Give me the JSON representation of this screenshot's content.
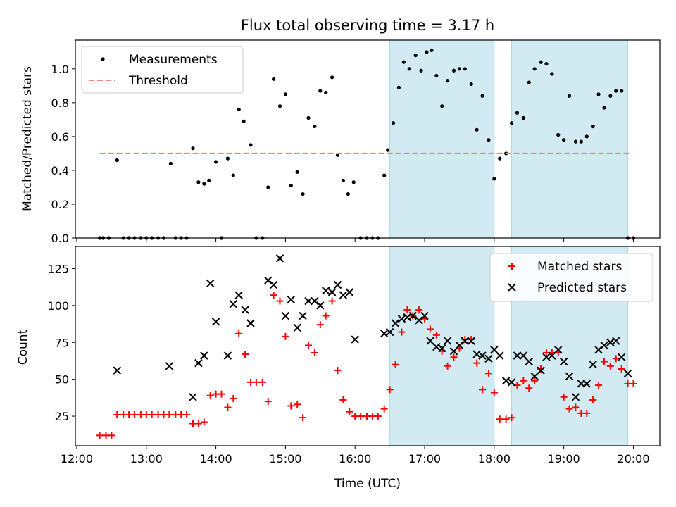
{
  "title": "Flux total observing time = 3.17 h",
  "shared_x": {
    "label": "Time (UTC)",
    "ticks": [
      "12:00",
      "13:00",
      "14:00",
      "15:00",
      "16:00",
      "17:00",
      "18:00",
      "19:00",
      "20:00"
    ],
    "range_hours": [
      11.98,
      20.38
    ],
    "shaded_intervals_hours": [
      [
        16.5,
        18.0
      ],
      [
        18.25,
        19.92
      ]
    ],
    "shade_color": "#add8e6"
  },
  "chart_data": [
    {
      "type": "scatter",
      "ylabel": "Matched/Predicted stars",
      "ylim": [
        0,
        1.17
      ],
      "yticks": [
        "0.0",
        "0.2",
        "0.4",
        "0.6",
        "0.8",
        "1.0"
      ],
      "legend_position": "top-left",
      "series": [
        {
          "name": "Measurements",
          "marker": "dot",
          "color": "#000000",
          "x": [
            12.33,
            12.38,
            12.46,
            12.58,
            12.67,
            12.75,
            12.83,
            12.92,
            13.0,
            13.08,
            13.17,
            13.25,
            13.35,
            13.42,
            13.5,
            13.58,
            13.67,
            13.75,
            13.83,
            13.9,
            14.0,
            14.08,
            14.17,
            14.25,
            14.33,
            14.4,
            14.5,
            14.58,
            14.67,
            14.75,
            14.83,
            14.92,
            15.0,
            15.08,
            15.17,
            15.25,
            15.33,
            15.42,
            15.5,
            15.58,
            15.67,
            15.75,
            15.83,
            15.9,
            15.98,
            16.08,
            16.17,
            16.25,
            16.33,
            16.42,
            16.47,
            16.55,
            16.63,
            16.7,
            16.78,
            16.87,
            16.95,
            17.03,
            17.1,
            17.17,
            17.25,
            17.33,
            17.42,
            17.5,
            17.58,
            17.67,
            17.75,
            17.83,
            17.92,
            18.0,
            18.08,
            18.17,
            18.25,
            18.33,
            18.42,
            18.5,
            18.58,
            18.67,
            18.75,
            18.83,
            18.92,
            19.0,
            19.08,
            19.17,
            19.25,
            19.33,
            19.42,
            19.5,
            19.58,
            19.67,
            19.75,
            19.83,
            19.92,
            20.0
          ],
          "y": [
            0.0,
            0.0,
            0.0,
            0.46,
            0.0,
            0.0,
            0.0,
            0.0,
            0.0,
            0.0,
            0.0,
            0.0,
            0.44,
            0.0,
            0.0,
            0.0,
            0.53,
            0.33,
            0.32,
            0.34,
            0.45,
            0.0,
            0.47,
            0.37,
            0.76,
            0.69,
            0.55,
            0.0,
            0.0,
            0.3,
            0.94,
            0.78,
            0.85,
            0.31,
            0.39,
            0.26,
            0.71,
            0.66,
            0.87,
            0.86,
            0.95,
            0.49,
            0.34,
            0.26,
            0.33,
            0.0,
            0.0,
            0.0,
            0.0,
            0.37,
            0.52,
            0.68,
            0.89,
            1.04,
            1.0,
            1.08,
            0.99,
            1.1,
            1.11,
            0.96,
            0.78,
            0.93,
            0.99,
            1.0,
            1.0,
            0.91,
            0.64,
            0.84,
            0.58,
            0.35,
            0.47,
            0.5,
            0.68,
            0.74,
            0.71,
            0.92,
            1.0,
            1.04,
            1.03,
            0.97,
            0.61,
            0.58,
            0.84,
            0.57,
            0.57,
            0.6,
            0.66,
            0.85,
            0.77,
            0.84,
            0.87,
            0.87,
            0.0,
            0.0
          ]
        },
        {
          "name": "Threshold",
          "marker": "dashed-line",
          "color": "#ff7f7f",
          "x": [
            12.33,
            19.98
          ],
          "y": [
            0.5,
            0.5
          ]
        }
      ]
    },
    {
      "type": "scatter",
      "ylabel": "Count",
      "ylim": [
        5,
        140
      ],
      "yticks": [
        "25",
        "50",
        "75",
        "100",
        "125"
      ],
      "legend_position": "top-right",
      "series": [
        {
          "name": "Matched stars",
          "marker": "plus",
          "color": "#ff0000",
          "x": [
            12.33,
            12.42,
            12.5,
            12.58,
            12.67,
            12.75,
            12.83,
            12.92,
            13.0,
            13.08,
            13.17,
            13.25,
            13.33,
            13.42,
            13.5,
            13.58,
            13.67,
            13.75,
            13.83,
            13.92,
            14.0,
            14.08,
            14.17,
            14.25,
            14.33,
            14.42,
            14.5,
            14.58,
            14.67,
            14.75,
            14.83,
            14.92,
            15.0,
            15.08,
            15.17,
            15.25,
            15.33,
            15.42,
            15.5,
            15.58,
            15.67,
            15.75,
            15.83,
            15.92,
            16.0,
            16.08,
            16.17,
            16.25,
            16.33,
            16.42,
            16.5,
            16.58,
            16.67,
            16.75,
            16.83,
            16.92,
            17.0,
            17.08,
            17.17,
            17.25,
            17.33,
            17.42,
            17.5,
            17.58,
            17.67,
            17.75,
            17.83,
            17.92,
            18.0,
            18.08,
            18.17,
            18.25,
            18.33,
            18.42,
            18.5,
            18.58,
            18.67,
            18.75,
            18.83,
            18.92,
            19.0,
            19.08,
            19.17,
            19.25,
            19.33,
            19.42,
            19.5,
            19.58,
            19.67,
            19.75,
            19.83,
            19.92,
            20.0
          ],
          "y": [
            12,
            12,
            12,
            26,
            26,
            26,
            26,
            26,
            26,
            26,
            26,
            26,
            26,
            26,
            26,
            26,
            20,
            20,
            21,
            39,
            40,
            40,
            31,
            37,
            81,
            67,
            48,
            48,
            48,
            35,
            107,
            103,
            79,
            32,
            33,
            24,
            73,
            68,
            87,
            93,
            103,
            56,
            36,
            28,
            25,
            25,
            25,
            25,
            25,
            30,
            43,
            60,
            82,
            97,
            93,
            97,
            91,
            84,
            80,
            69,
            59,
            65,
            71,
            77,
            77,
            61,
            43,
            54,
            41,
            23,
            23,
            24,
            46,
            49,
            44,
            49,
            57,
            68,
            68,
            68,
            38,
            30,
            31,
            27,
            27,
            36,
            46,
            62,
            59,
            64,
            57,
            47,
            47
          ]
        },
        {
          "name": "Predicted stars",
          "marker": "x",
          "color": "#000000",
          "x": [
            12.58,
            13.33,
            13.67,
            13.75,
            13.83,
            13.92,
            14.0,
            14.17,
            14.25,
            14.33,
            14.42,
            14.5,
            14.75,
            14.83,
            14.92,
            15.0,
            15.08,
            15.17,
            15.25,
            15.33,
            15.42,
            15.5,
            15.58,
            15.67,
            15.75,
            15.83,
            15.92,
            16.0,
            16.42,
            16.5,
            16.58,
            16.67,
            16.75,
            16.83,
            16.92,
            17.0,
            17.08,
            17.17,
            17.25,
            17.33,
            17.42,
            17.5,
            17.58,
            17.67,
            17.75,
            17.83,
            17.92,
            18.0,
            18.08,
            18.17,
            18.25,
            18.33,
            18.42,
            18.5,
            18.58,
            18.67,
            18.75,
            18.83,
            18.92,
            19.0,
            19.08,
            19.17,
            19.25,
            19.33,
            19.42,
            19.5,
            19.58,
            19.67,
            19.75,
            19.83,
            19.92
          ],
          "y": [
            56,
            59,
            38,
            61,
            66,
            115,
            89,
            66,
            101,
            107,
            97,
            88,
            117,
            114,
            132,
            93,
            104,
            85,
            93,
            103,
            103,
            100,
            110,
            109,
            114,
            107,
            109,
            77,
            81,
            82,
            88,
            91,
            92,
            93,
            90,
            93,
            76,
            72,
            71,
            76,
            69,
            73,
            76,
            76,
            67,
            66,
            64,
            70,
            66,
            49,
            48,
            66,
            66,
            62,
            52,
            56,
            65,
            66,
            70,
            62,
            52,
            38,
            47,
            47,
            60,
            70,
            73,
            75,
            76,
            65,
            54
          ]
        }
      ]
    }
  ]
}
